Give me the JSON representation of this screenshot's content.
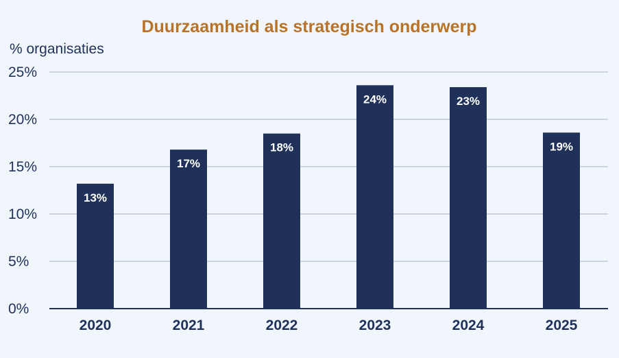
{
  "colors": {
    "background": "#f0f6fc",
    "title": "#b8732b",
    "bar": "#1f3158",
    "text": "#1f3158",
    "grid": "#a9b3c1"
  },
  "chart_data": {
    "type": "bar",
    "title": "Duurzaamheid als strategisch onderwerp",
    "ylabel": "% organisaties",
    "xlabel": "",
    "categories": [
      "2020",
      "2021",
      "2022",
      "2023",
      "2024",
      "2025"
    ],
    "values": [
      13.2,
      16.8,
      18.5,
      23.6,
      23.4,
      18.6
    ],
    "data_labels": [
      "13%",
      "17%",
      "18%",
      "24%",
      "23%",
      "19%"
    ],
    "ylim": [
      0,
      25
    ],
    "yticks": [
      0,
      5,
      10,
      15,
      20,
      25
    ],
    "ytick_labels": [
      "0%",
      "5%",
      "10%",
      "15%",
      "20%",
      "25%"
    ],
    "grid": true,
    "legend": "none"
  }
}
